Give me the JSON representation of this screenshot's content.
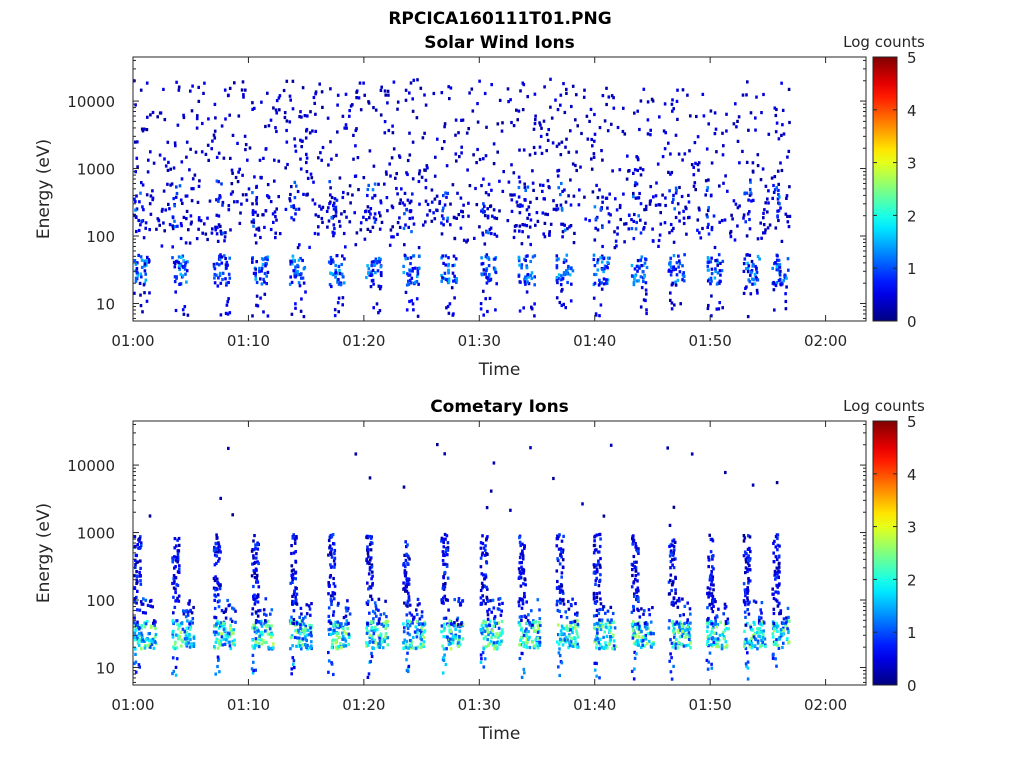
{
  "figure_title": "RPCICA160111T01.PNG",
  "chart_data": [
    {
      "type": "heatmap",
      "title": "Solar Wind Ions",
      "xlabel": "Time",
      "ylabel": "Energy (eV)",
      "x_ticks": [
        "01:00",
        "01:10",
        "01:20",
        "01:30",
        "01:40",
        "01:50",
        "02:00"
      ],
      "x_range_minutes": [
        0,
        63.5
      ],
      "y_scale": "log",
      "y_ticks": [
        "10",
        "100",
        "1000",
        "10000"
      ],
      "y_range": [
        5.5,
        45000
      ],
      "colorbar": {
        "label": "Log counts",
        "ticks": [
          "0",
          "1",
          "2",
          "3",
          "4",
          "5"
        ],
        "range": [
          0,
          5
        ],
        "colormap": "jet"
      },
      "data_extent_minutes": [
        0,
        56.8
      ],
      "sweep_start_minutes": [
        0,
        3.3,
        6.9,
        10.2,
        13.5,
        16.8,
        20.1,
        23.3,
        26.6,
        30.0,
        33.3,
        36.6,
        39.8,
        43.1,
        46.3,
        49.6,
        52.8,
        55.3
      ],
      "description_counts": "Mostly sparse 0-1 log counts; dense low-energy (15-40 eV) patches at each sweep up to ~1.5",
      "grid": false
    },
    {
      "type": "heatmap",
      "title": "Cometary Ions",
      "xlabel": "Time",
      "ylabel": "Energy (eV)",
      "x_ticks": [
        "01:00",
        "01:10",
        "01:20",
        "01:30",
        "01:40",
        "01:50",
        "02:00"
      ],
      "x_range_minutes": [
        0,
        63.5
      ],
      "y_scale": "log",
      "y_ticks": [
        "10",
        "100",
        "1000",
        "10000"
      ],
      "y_range": [
        5.5,
        45000
      ],
      "colorbar": {
        "label": "Log counts",
        "ticks": [
          "0",
          "1",
          "2",
          "3",
          "4",
          "5"
        ],
        "range": [
          0,
          5
        ],
        "colormap": "jet"
      },
      "data_extent_minutes": [
        0,
        56.8
      ],
      "sweep_start_minutes": [
        0,
        3.3,
        6.9,
        10.2,
        13.5,
        16.8,
        20.1,
        23.3,
        26.6,
        30.0,
        33.3,
        36.6,
        39.8,
        43.1,
        46.3,
        49.6,
        52.8,
        55.3
      ],
      "description_counts": "Periodic vertical spikes per sweep; peak 2-3 log counts near 20-40 eV, extending to ~1000 eV",
      "grid": false
    }
  ]
}
